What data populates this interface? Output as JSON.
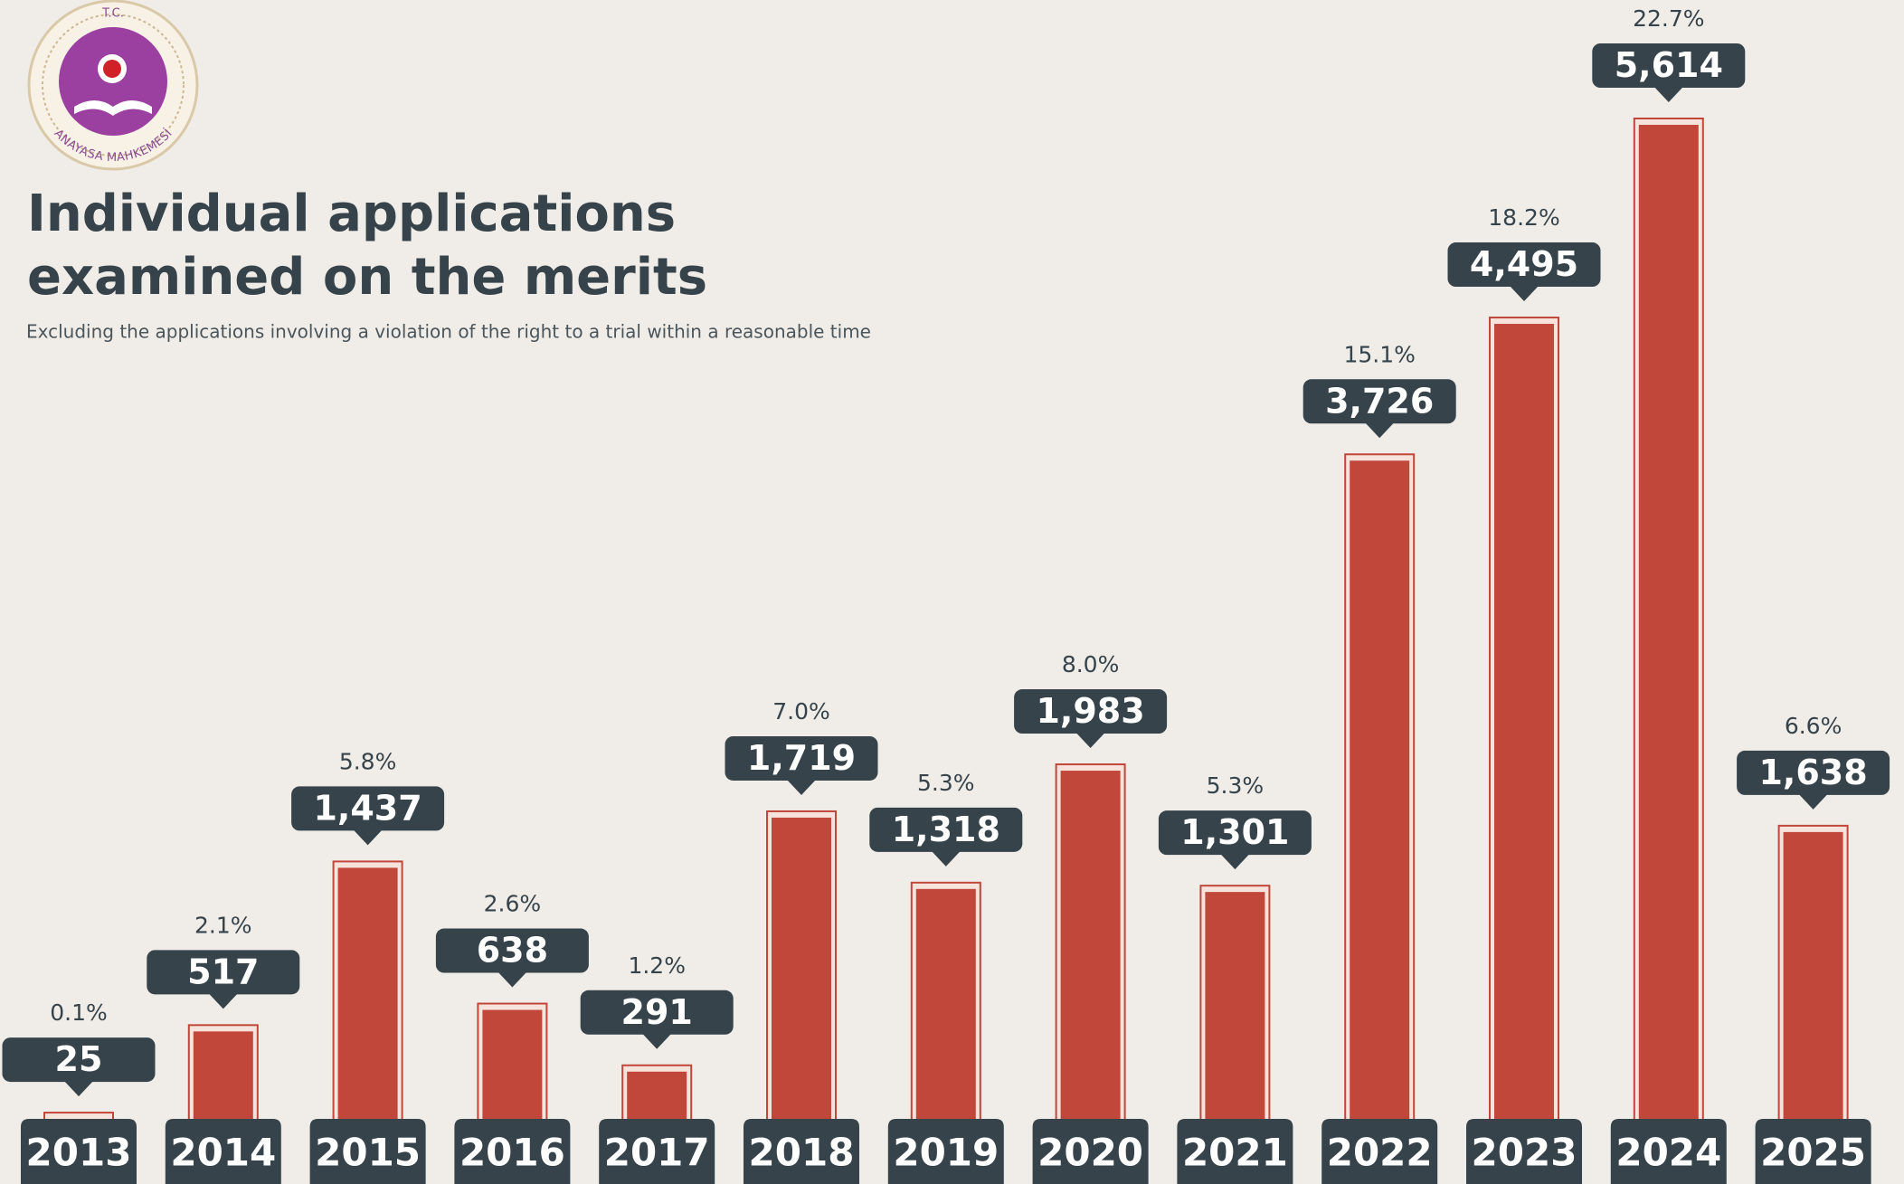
{
  "chart_data": {
    "type": "bar",
    "logo": {
      "top": "T.C.",
      "bottom": "ANAYASA MAHKEMESİ"
    },
    "title": [
      "Individual applications",
      "examined on the merits"
    ],
    "subtitle": "Excluding the applications involving a violation of the right to a trial within a reasonable time",
    "categories": [
      "2013",
      "2014",
      "2015",
      "2016",
      "2017",
      "2018",
      "2019",
      "2020",
      "2021",
      "2022",
      "2023",
      "2024",
      "2025"
    ],
    "values": [
      25,
      517,
      1437,
      638,
      291,
      1719,
      1318,
      1983,
      1301,
      3726,
      4495,
      5614,
      1638
    ],
    "value_labels": [
      "25",
      "517",
      "1,437",
      "638",
      "291",
      "1,719",
      "1,318",
      "1,983",
      "1,301",
      "3,726",
      "4,495",
      "5,614",
      "1,638"
    ],
    "share_labels": [
      "0.1%",
      "2.1%",
      "5.8%",
      "2.6%",
      "1.2%",
      "7.0%",
      "5.3%",
      "8.0%",
      "5.3%",
      "15.1%",
      "18.2%",
      "22.7%",
      "6.6%"
    ],
    "color": "#c0473a"
  }
}
